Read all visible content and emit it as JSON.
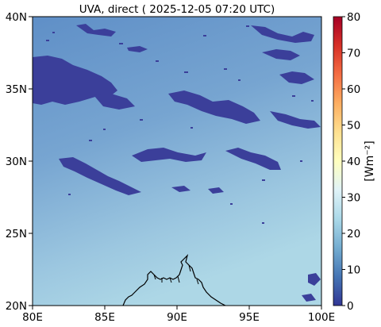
{
  "title": "UVA, direct ( 2025-12-05 07:20 UTC)",
  "map": {
    "lon_range": [
      80,
      100
    ],
    "lat_range": [
      20,
      40
    ],
    "x_ticks": [
      "80E",
      "85E",
      "90E",
      "95E",
      "100E"
    ],
    "y_ticks": [
      "20N",
      "25N",
      "30N",
      "35N",
      "40N"
    ],
    "coastline": "Bay of Bengal coastline (Ganges delta region, ~86E–93E at ~20–22N)",
    "cloud_color": "#3b3f9a"
  },
  "colorbar": {
    "label": "[Wm⁻²]",
    "min": 0,
    "max": 80,
    "ticks": [
      "0",
      "10",
      "20",
      "30",
      "40",
      "50",
      "60",
      "70",
      "80"
    ],
    "colormap": [
      "#313695",
      "#4575b4",
      "#74add1",
      "#abd9e9",
      "#e0f3f8",
      "#ffffbf",
      "#fee090",
      "#fdae61",
      "#f46d43",
      "#d73027",
      "#a50026"
    ]
  }
}
